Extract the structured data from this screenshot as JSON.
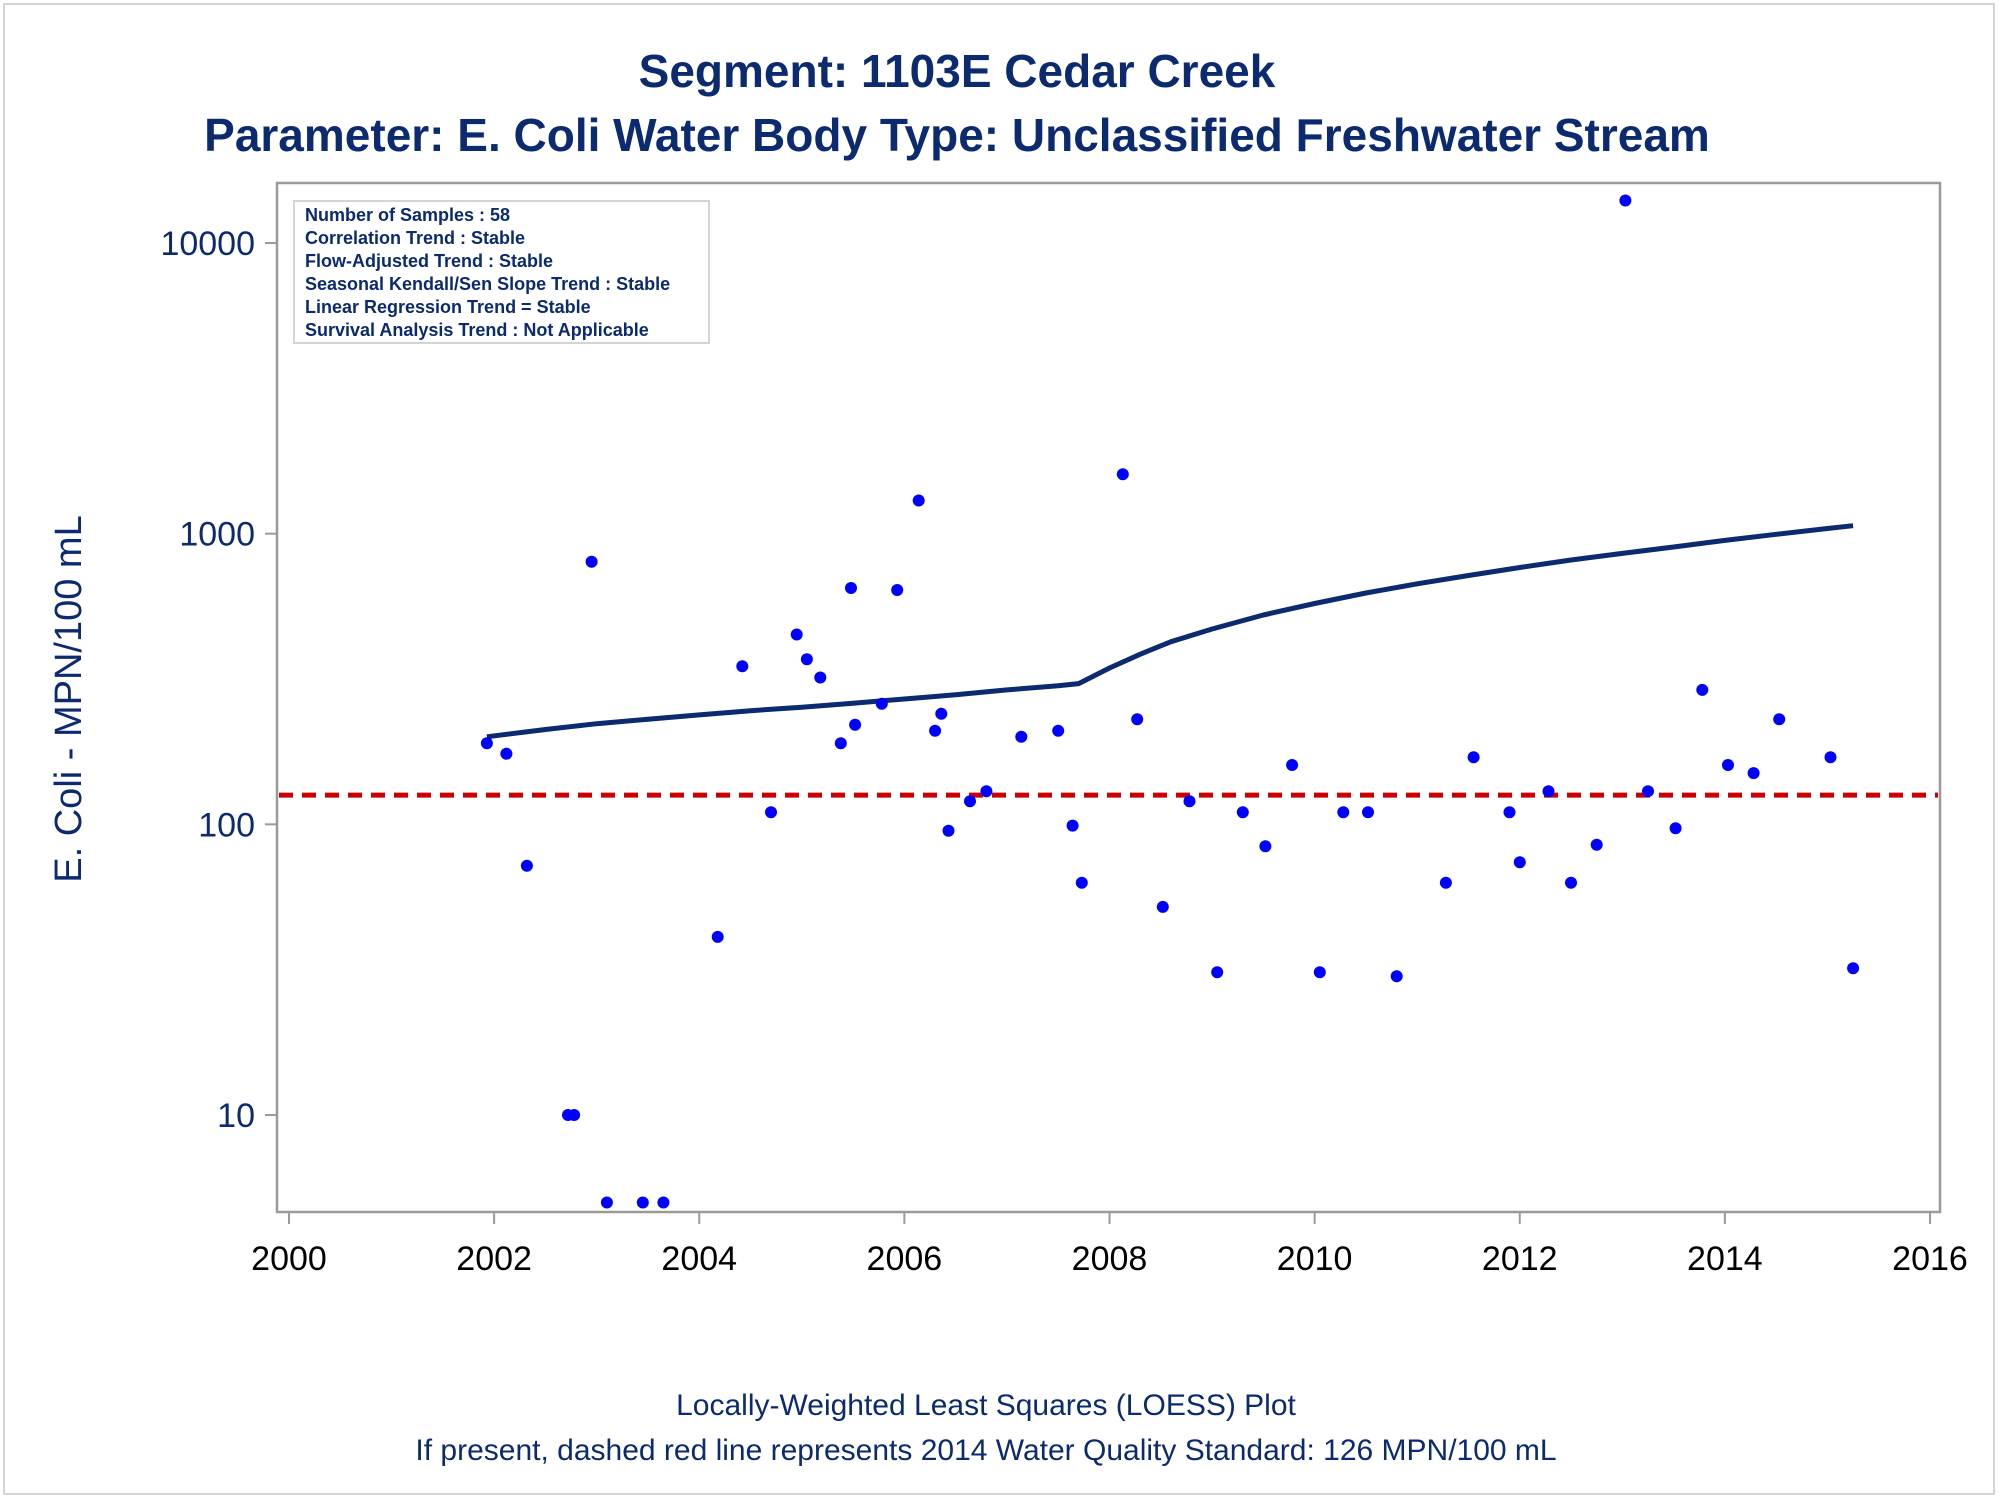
{
  "title_line1": "Segment: 1103E  Cedar Creek",
  "title_line2": "Parameter: E. Coli   Water Body Type: Unclassified Freshwater Stream",
  "info_box": [
    "Number of Samples : 58",
    "Correlation Trend : Stable",
    "Flow-Adjusted Trend : Stable",
    "Seasonal Kendall/Sen Slope Trend : Stable",
    "Linear Regression Trend = Stable",
    "Survival Analysis Trend : Not Applicable"
  ],
  "footnote_line1": "Locally-Weighted Least Squares (LOESS) Plot",
  "footnote_line2": "If present, dashed red line represents 2014 Water Quality Standard: 126 MPN/100 mL",
  "colors": {
    "text": "#0b2a6f",
    "points": "#0000ff",
    "loess": "#0b2a6f",
    "standard": "#cc0000",
    "axis": "#9a9a9a"
  },
  "chart_data": {
    "type": "scatter",
    "ylabel": "E. Coli - MPN/100 mL",
    "xlabel": "",
    "y_scale": "log",
    "xlim": [
      2000,
      2016
    ],
    "x_ticks": [
      "2000",
      "2002",
      "2004",
      "2006",
      "2008",
      "2010",
      "2012",
      "2014",
      "2016"
    ],
    "y_ticks": [
      "10",
      "100",
      "1000",
      "10000"
    ],
    "grid": false,
    "standard_line": {
      "value": 126,
      "style": "dashed"
    },
    "points": [
      [
        2001.93,
        190
      ],
      [
        2002.12,
        175
      ],
      [
        2002.32,
        72
      ],
      [
        2002.72,
        10
      ],
      [
        2002.78,
        10
      ],
      [
        2002.95,
        800
      ],
      [
        2003.1,
        5
      ],
      [
        2003.45,
        5
      ],
      [
        2003.65,
        5
      ],
      [
        2004.18,
        41
      ],
      [
        2004.42,
        350
      ],
      [
        2004.7,
        110
      ],
      [
        2004.95,
        450
      ],
      [
        2005.05,
        370
      ],
      [
        2005.18,
        320
      ],
      [
        2005.38,
        190
      ],
      [
        2005.48,
        650
      ],
      [
        2005.52,
        220
      ],
      [
        2005.78,
        260
      ],
      [
        2005.93,
        640
      ],
      [
        2006.14,
        1300
      ],
      [
        2006.3,
        210
      ],
      [
        2006.36,
        240
      ],
      [
        2006.43,
        95
      ],
      [
        2006.64,
        120
      ],
      [
        2006.8,
        130
      ],
      [
        2007.14,
        200
      ],
      [
        2007.5,
        210
      ],
      [
        2007.64,
        99
      ],
      [
        2007.73,
        63
      ],
      [
        2008.13,
        1600
      ],
      [
        2008.27,
        230
      ],
      [
        2008.52,
        52
      ],
      [
        2008.78,
        120
      ],
      [
        2009.05,
        31
      ],
      [
        2009.3,
        110
      ],
      [
        2009.52,
        84
      ],
      [
        2009.78,
        160
      ],
      [
        2010.05,
        31
      ],
      [
        2010.28,
        110
      ],
      [
        2010.52,
        110
      ],
      [
        2010.8,
        30
      ],
      [
        2011.28,
        63
      ],
      [
        2011.55,
        170
      ],
      [
        2011.9,
        110
      ],
      [
        2012.0,
        74
      ],
      [
        2012.28,
        130
      ],
      [
        2012.5,
        63
      ],
      [
        2012.75,
        85
      ],
      [
        2013.03,
        14000
      ],
      [
        2013.25,
        130
      ],
      [
        2013.52,
        97
      ],
      [
        2013.78,
        290
      ],
      [
        2014.03,
        160
      ],
      [
        2014.28,
        150
      ],
      [
        2014.53,
        230
      ],
      [
        2015.03,
        170
      ],
      [
        2015.25,
        32
      ]
    ],
    "loess": [
      [
        2001.93,
        200
      ],
      [
        2002.5,
        212
      ],
      [
        2003.0,
        222
      ],
      [
        2003.5,
        230
      ],
      [
        2004.0,
        238
      ],
      [
        2004.5,
        246
      ],
      [
        2005.0,
        253
      ],
      [
        2005.5,
        261
      ],
      [
        2006.0,
        270
      ],
      [
        2006.5,
        279
      ],
      [
        2007.0,
        290
      ],
      [
        2007.5,
        300
      ],
      [
        2007.7,
        305
      ],
      [
        2008.0,
        345
      ],
      [
        2008.3,
        385
      ],
      [
        2008.6,
        425
      ],
      [
        2009.0,
        470
      ],
      [
        2009.5,
        525
      ],
      [
        2010.0,
        575
      ],
      [
        2010.5,
        625
      ],
      [
        2011.0,
        672
      ],
      [
        2011.5,
        718
      ],
      [
        2012.0,
        765
      ],
      [
        2012.5,
        812
      ],
      [
        2013.0,
        855
      ],
      [
        2013.5,
        900
      ],
      [
        2014.0,
        948
      ],
      [
        2014.5,
        995
      ],
      [
        2015.0,
        1042
      ],
      [
        2015.25,
        1065
      ]
    ]
  }
}
